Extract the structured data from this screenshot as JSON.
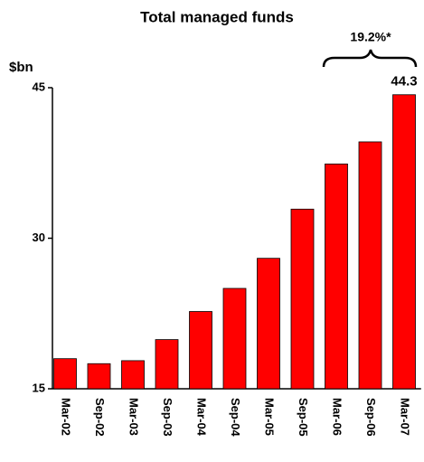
{
  "chart_data": {
    "type": "bar",
    "title": "Total managed funds",
    "y_label": "$bn",
    "categories": [
      "Mar-02",
      "Sep-02",
      "Mar-03",
      "Sep-03",
      "Mar-04",
      "Sep-04",
      "Mar-05",
      "Sep-05",
      "Mar-06",
      "Sep-06",
      "Mar-07"
    ],
    "values": [
      18.0,
      17.5,
      17.8,
      19.9,
      22.7,
      25.0,
      28.0,
      32.9,
      37.4,
      39.6,
      44.3
    ],
    "color": "#ff0000",
    "ylim": [
      15,
      45
    ],
    "yticks": [
      15,
      30,
      45
    ],
    "grid": false,
    "annotations": [
      "44.3",
      "19.2%*"
    ]
  }
}
